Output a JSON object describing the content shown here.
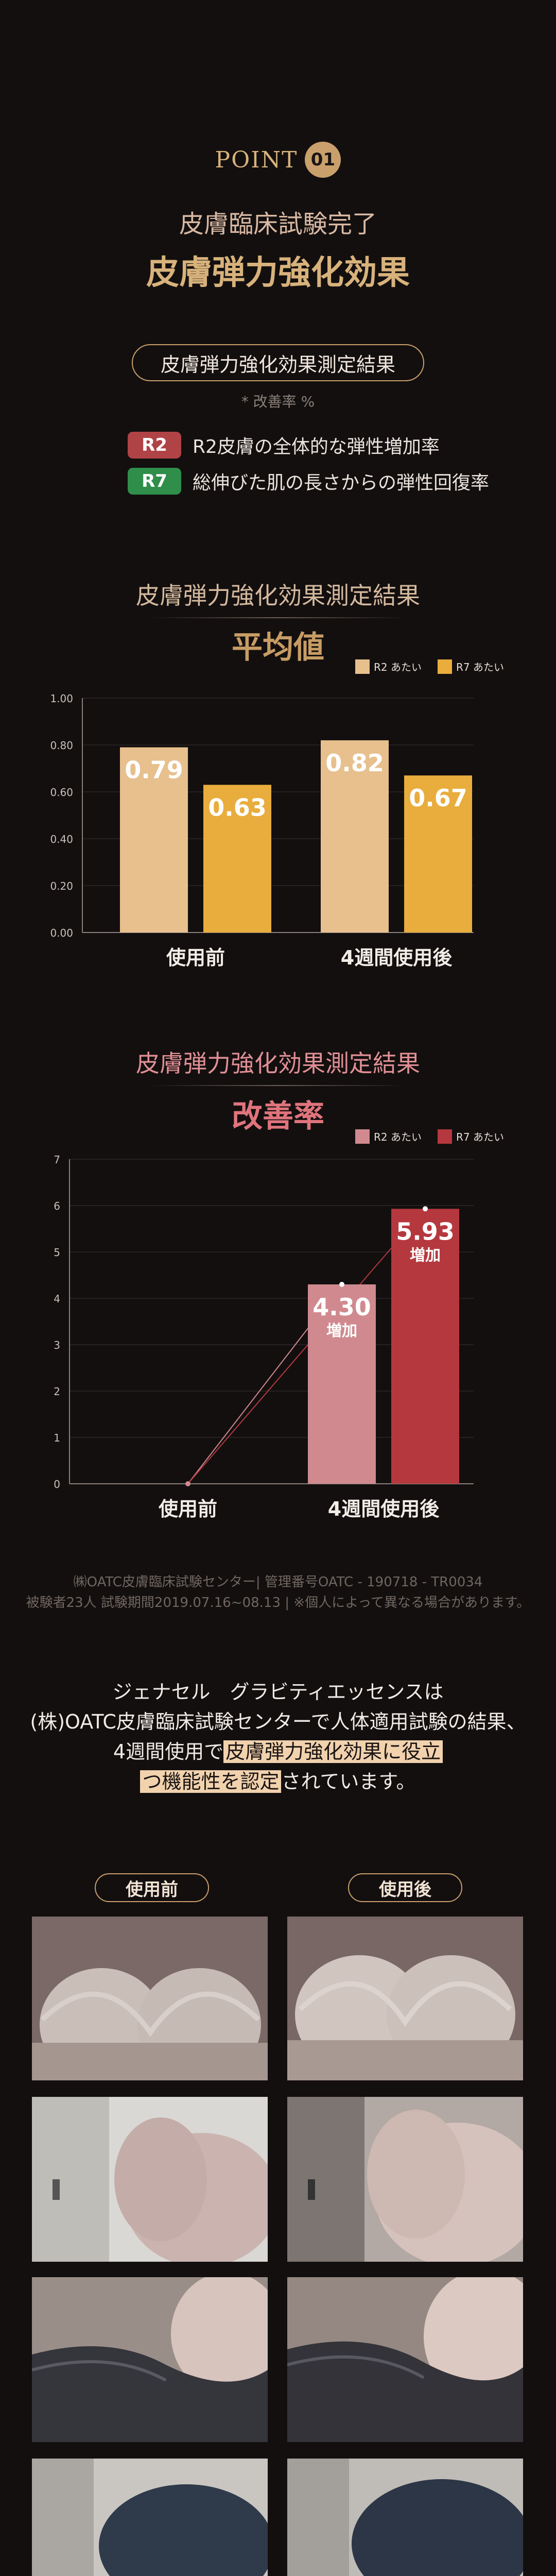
{
  "point": {
    "label": "POINT",
    "number": "01"
  },
  "hero": {
    "line1": "皮膚臨床試験完了",
    "line2": "皮膚弾力強化効果"
  },
  "result_pill": "皮膚弾力強化効果測定結果",
  "sub_note": "* 改善率 %",
  "legend_items": [
    {
      "tag": "R2",
      "text": "R2皮膚の全体的な弾性増加率",
      "color": "#b04346"
    },
    {
      "tag": "R7",
      "text": "総伸びた肌の長さからの弾性回復率",
      "color": "#2f8e4a"
    }
  ],
  "section1": {
    "title": "皮膚弾力強化効果測定結果",
    "subtitle": "平均値"
  },
  "section2": {
    "title": "皮膚弾力強化効果測定結果",
    "subtitle": "改善率"
  },
  "chart_data": [
    {
      "type": "bar",
      "categories": [
        "使用前",
        "4週間使用後"
      ],
      "series": [
        {
          "name": "R2 あたい",
          "values": [
            0.79,
            0.82
          ],
          "color": "#e7c08e"
        },
        {
          "name": "R7 あたい",
          "values": [
            0.63,
            0.67
          ],
          "color": "#e8ad3d"
        }
      ],
      "ylim": [
        0,
        1.0
      ],
      "yticks": [
        "1.00",
        "0.80",
        "0.60",
        "0.40",
        "0.20",
        "0.00"
      ],
      "grid": true,
      "legend": "top-right"
    },
    {
      "type": "bar",
      "categories": [
        "使用前",
        "4週間使用後"
      ],
      "series": [
        {
          "name": "R2 あたい",
          "values": [
            0,
            4.3
          ],
          "color": "#d08a8f"
        },
        {
          "name": "R7 あたい",
          "values": [
            0,
            5.93
          ],
          "color": "#b5383e"
        }
      ],
      "bar_labels": [
        "4.30",
        "5.93"
      ],
      "bar_sublabel": "増加",
      "ylim": [
        0,
        7
      ],
      "yticks": [
        "7",
        "6",
        "5",
        "4",
        "3",
        "2",
        "1",
        "0"
      ],
      "grid": true,
      "legend": "top-right"
    }
  ],
  "credit": {
    "line1": "㈱OATC皮膚臨床試験センター| 管理番号OATC - 190718 - TR0034",
    "line2": "被験者23人 試験期間2019.07.16~08.13 | ※個人によって異なる場合があります。"
  },
  "closing": {
    "line1": "ジェナセル　グラビティエッセンスは",
    "line2": "(株)OATC皮膚臨床試験センターで人体適用試験の結果、",
    "line3_pre": "4週間使用で",
    "line3_hl": "皮膚弾力強化効果に役立",
    "line4_hl": "つ機能性を認定",
    "line4_post": "されています。"
  },
  "before_after": {
    "before": "使用前",
    "after": "使用後"
  },
  "photos": [
    {
      "desc": "front-view"
    },
    {
      "desc": "side-view"
    },
    {
      "desc": "lace-view"
    }
  ]
}
